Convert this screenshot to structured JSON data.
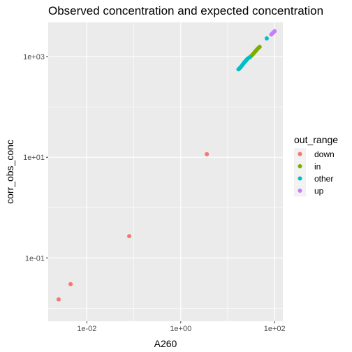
{
  "chart_data": {
    "type": "scatter",
    "title": "Observed concentration and expected concentration",
    "xlabel": "A260",
    "ylabel": "corr_obs_conc",
    "x_scale": "log10",
    "y_scale": "log10",
    "xlim": [
      0.0015,
      150
    ],
    "ylim": [
      0.0055,
      4800
    ],
    "x_ticks": [
      {
        "value": 0.01,
        "label": "1e-02"
      },
      {
        "value": 1,
        "label": "1e+00"
      },
      {
        "value": 100,
        "label": "1e+02"
      }
    ],
    "y_ticks": [
      {
        "value": 0.1,
        "label": "1e-01"
      },
      {
        "value": 10,
        "label": "1e+01"
      },
      {
        "value": 1000,
        "label": "1e+03"
      }
    ],
    "grid": true,
    "legend": {
      "title": "out_range",
      "placement": "right"
    },
    "series": [
      {
        "name": "down",
        "color": "#F8766D",
        "points": [
          {
            "x": 0.0025,
            "y": 0.015
          },
          {
            "x": 0.0045,
            "y": 0.03
          },
          {
            "x": 0.08,
            "y": 0.27
          },
          {
            "x": 3.6,
            "y": 11.5
          }
        ]
      },
      {
        "name": "in",
        "color": "#7CAE00",
        "points": [
          {
            "x": 30,
            "y": 980
          },
          {
            "x": 32,
            "y": 1040
          },
          {
            "x": 34,
            "y": 1100
          },
          {
            "x": 36,
            "y": 1170
          },
          {
            "x": 38,
            "y": 1240
          },
          {
            "x": 40,
            "y": 1310
          },
          {
            "x": 42,
            "y": 1380
          },
          {
            "x": 45,
            "y": 1480
          },
          {
            "x": 48,
            "y": 1560
          }
        ]
      },
      {
        "name": "other",
        "color": "#00BFC4",
        "points": [
          {
            "x": 17,
            "y": 560
          },
          {
            "x": 18,
            "y": 590
          },
          {
            "x": 19,
            "y": 620
          },
          {
            "x": 20,
            "y": 660
          },
          {
            "x": 21,
            "y": 700
          },
          {
            "x": 22,
            "y": 740
          },
          {
            "x": 23,
            "y": 780
          },
          {
            "x": 24,
            "y": 810
          },
          {
            "x": 25,
            "y": 850
          },
          {
            "x": 26,
            "y": 890
          },
          {
            "x": 27,
            "y": 920
          },
          {
            "x": 29,
            "y": 960
          },
          {
            "x": 68,
            "y": 2300
          }
        ]
      },
      {
        "name": "up",
        "color": "#C77CFF",
        "points": [
          {
            "x": 85,
            "y": 2750
          },
          {
            "x": 90,
            "y": 2900
          },
          {
            "x": 95,
            "y": 3050
          },
          {
            "x": 100,
            "y": 3200
          }
        ]
      }
    ]
  }
}
